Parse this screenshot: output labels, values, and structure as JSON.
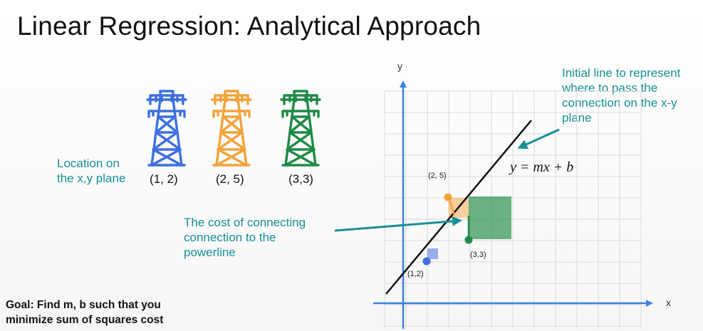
{
  "title": "Linear Regression: Analytical Approach",
  "location_label": "Location on\nthe x,y plane",
  "towers": [
    {
      "label": "(1, 2)",
      "color": "#3d6fe0",
      "icon": "power-tower-icon"
    },
    {
      "label": "(2, 5)",
      "color": "#f2a33a",
      "icon": "power-tower-icon"
    },
    {
      "label": "(3,3)",
      "color": "#1f8a45",
      "icon": "power-tower-icon"
    }
  ],
  "cost_annotation": "The cost of connecting\nconnection to the\npowerline",
  "line_annotation": "Initial line to represent\nwhere to pass the\nconnection on the x-y\nplane",
  "equation": "y = mx + b",
  "goal": "Goal: Find m, b such that you\nminimize sum of squares cost",
  "axes": {
    "x_label": "x",
    "y_label": "y"
  },
  "point_labels": [
    "(1,2)",
    "(2, 5)",
    "(3,3)"
  ],
  "colors": {
    "teal": "#178f97",
    "axis_blue": "#3d7fe3",
    "grid": "#d9d9d9",
    "point_1": "#3d6fe0",
    "point_2": "#f2a33a",
    "point_3": "#1f8a45"
  }
}
